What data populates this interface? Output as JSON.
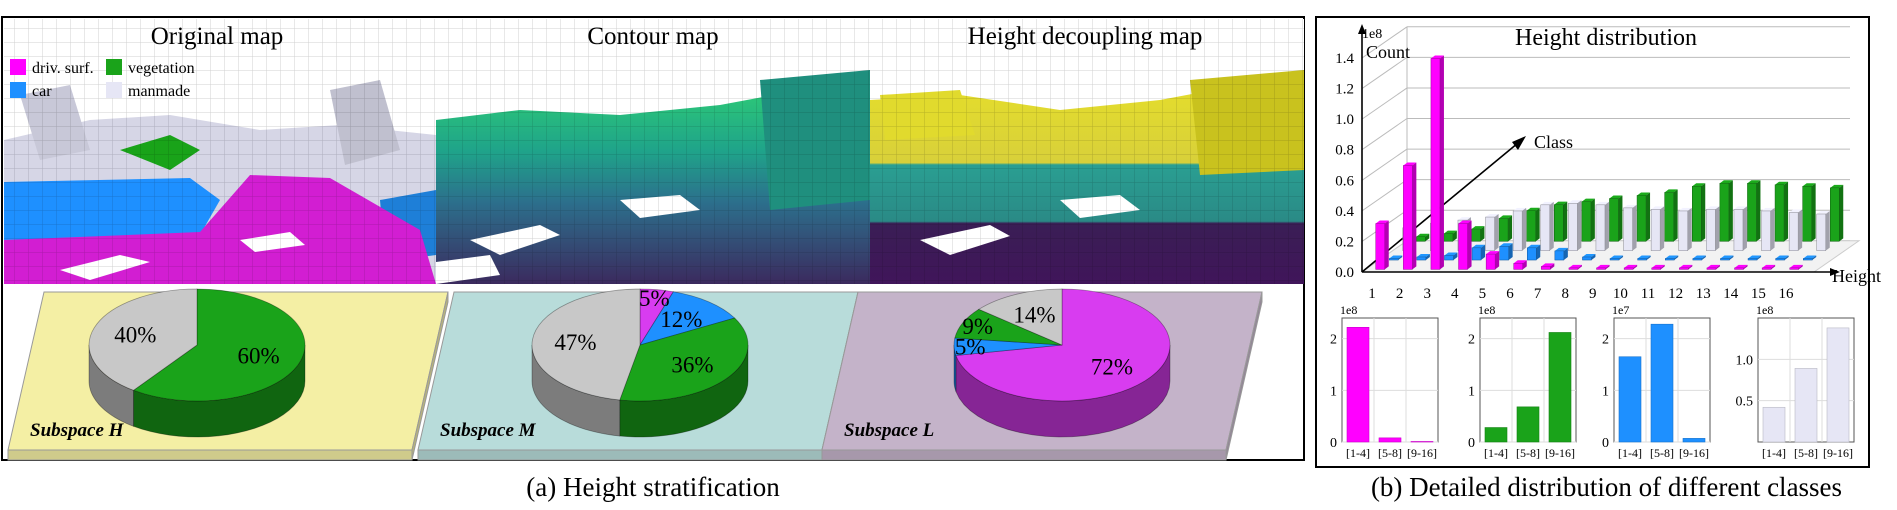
{
  "panel_a": {
    "titles": [
      "Original map",
      "Contour map",
      "Height decoupling map"
    ],
    "legend": [
      {
        "label": "driv. surf.",
        "color": "#ff00ff"
      },
      {
        "label": "vegetation",
        "color": "#1aa31a"
      },
      {
        "label": "car",
        "color": "#1e90ff"
      },
      {
        "label": "manmade",
        "color": "#e6e6f5"
      }
    ],
    "subspaces": [
      {
        "label": "Subspace H",
        "plate": "#f4efa4",
        "slices": [
          {
            "value": 60,
            "label": "60%",
            "color": "#1aa31a"
          },
          {
            "value": 40,
            "label": "40%",
            "color": "#c8c8c8"
          }
        ]
      },
      {
        "label": "Subspace M",
        "plate": "#b8dcda",
        "slices": [
          {
            "value": 5,
            "label": "5%",
            "color": "#d83cf0"
          },
          {
            "value": 12,
            "label": "12%",
            "color": "#1e90ff"
          },
          {
            "value": 36,
            "label": "36%",
            "color": "#1aa31a"
          },
          {
            "value": 47,
            "label": "47%",
            "color": "#c8c8c8"
          }
        ]
      },
      {
        "label": "Subspace L",
        "plate": "#c4b3c9",
        "slices": [
          {
            "value": 72,
            "label": "72%",
            "color": "#d83cf0"
          },
          {
            "value": 5,
            "label": "5%",
            "color": "#1e90ff"
          },
          {
            "value": 9,
            "label": "9%",
            "color": "#1aa31a"
          },
          {
            "value": 14,
            "label": "14%",
            "color": "#c8c8c8"
          }
        ]
      }
    ],
    "caption": "(a) Height stratification"
  },
  "panel_b": {
    "caption": "(b) Detailed distribution of different classes"
  },
  "chart_data": [
    {
      "type": "bar",
      "title": "Height distribution",
      "xlabel": "Height",
      "ylabel": "Count",
      "zlabel": "Class",
      "yscale_label": "1e8",
      "ylim": [
        0,
        1.4
      ],
      "yticks": [
        "0.0",
        "0.2",
        "0.4",
        "0.6",
        "0.8",
        "1.0",
        "1.2",
        "1.4"
      ],
      "categories": [
        "1",
        "2",
        "3",
        "4",
        "5",
        "6",
        "7",
        "8",
        "9",
        "10",
        "11",
        "12",
        "13",
        "14",
        "15",
        "16"
      ],
      "series": [
        {
          "color": "#ff00ff",
          "values": [
            0.3,
            0.68,
            1.38,
            0.3,
            0.1,
            0.04,
            0.02,
            0.01,
            0.01,
            0.01,
            0.01,
            0.01,
            0.01,
            0.01,
            0.01,
            0.01
          ]
        },
        {
          "color": "#1e90ff",
          "values": [
            0.01,
            0.02,
            0.03,
            0.08,
            0.09,
            0.08,
            0.06,
            0.02,
            0.01,
            0.01,
            0.01,
            0.01,
            0.01,
            0.01,
            0.01,
            0.01
          ]
        },
        {
          "color": "#e6e6f5",
          "values": [
            0.15,
            0.18,
            0.2,
            0.22,
            0.26,
            0.3,
            0.31,
            0.3,
            0.28,
            0.27,
            0.26,
            0.27,
            0.27,
            0.26,
            0.25,
            0.24
          ]
        },
        {
          "color": "#1aa31a",
          "values": [
            0.03,
            0.05,
            0.08,
            0.15,
            0.2,
            0.24,
            0.26,
            0.28,
            0.3,
            0.32,
            0.36,
            0.38,
            0.38,
            0.37,
            0.36,
            0.35
          ]
        }
      ]
    },
    {
      "type": "bar",
      "yscale_label": "1e8",
      "ylim": [
        0,
        2.4
      ],
      "yticks": [
        "0",
        "1",
        "2"
      ],
      "tickvals": [
        0,
        1,
        2
      ],
      "categories": [
        "[1-4]",
        "[5-8]",
        "[9-16]"
      ],
      "color": "#ff00ff",
      "values": [
        2.22,
        0.08,
        0.01
      ]
    },
    {
      "type": "bar",
      "yscale_label": "1e8",
      "ylim": [
        0,
        2.4
      ],
      "yticks": [
        "0",
        "1",
        "2"
      ],
      "tickvals": [
        0,
        1,
        2
      ],
      "categories": [
        "[1-4]",
        "[5-8]",
        "[9-16]"
      ],
      "color": "#1aa31a",
      "values": [
        0.28,
        0.68,
        2.12
      ]
    },
    {
      "type": "bar",
      "yscale_label": "1e7",
      "ylim": [
        0,
        2.4
      ],
      "yticks": [
        "0",
        "1",
        "2"
      ],
      "tickvals": [
        0,
        1,
        2
      ],
      "categories": [
        "[1-4]",
        "[5-8]",
        "[9-16]"
      ],
      "color": "#1e90ff",
      "values": [
        1.65,
        2.28,
        0.07
      ]
    },
    {
      "type": "bar",
      "yscale_label": "1e8",
      "ylim": [
        0,
        1.5
      ],
      "yticks": [
        "0.5",
        "1.0"
      ],
      "tickvals": [
        0.5,
        1.0
      ],
      "categories": [
        "[1-4]",
        "[5-8]",
        "[9-16]"
      ],
      "color": "#e6e6f5",
      "values": [
        0.42,
        0.89,
        1.38
      ]
    }
  ]
}
